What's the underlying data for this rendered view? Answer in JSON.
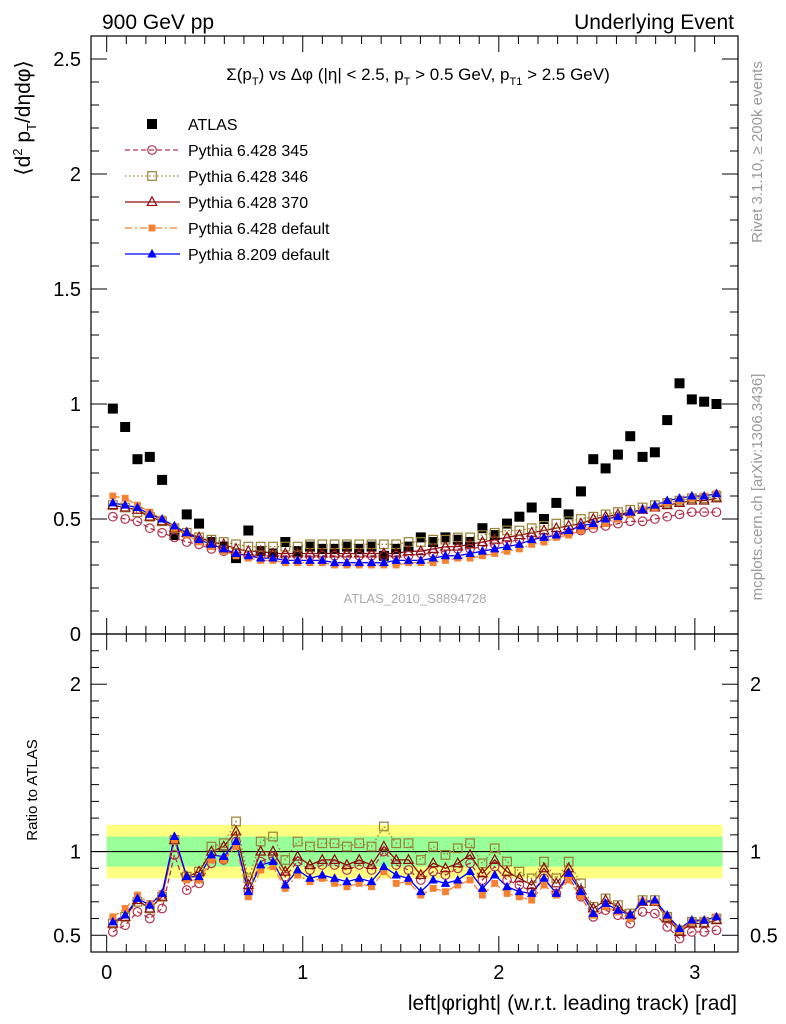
{
  "header": {
    "left": "900 GeV pp",
    "right": "Underlying Event"
  },
  "side_labels": {
    "rivet": "Rivet 3.1.10, ≥ 200k events",
    "mcplots": "mcplots.cern.ch [arXiv:1306.3436]"
  },
  "colors": {
    "atlas": "#000000",
    "p345": "#b2334d",
    "p346": "#998033",
    "p370": "#8c0d0d",
    "p6def": "#f58232",
    "p8def": "#0000ff",
    "band_outer": "#ffff80",
    "band_inner": "#99ff99"
  },
  "chart_data": [
    {
      "type": "scatter",
      "title_main": "Σ(p_T) vs Δφ (|η| < 2.5, p_T > 0.5 GeV, p_T1 > 2.5 GeV)",
      "ylabel": "⟨d² p_T/dηdφ⟩",
      "watermark": "ATLAS_2010_S8894728",
      "ylim": [
        0,
        2.6
      ],
      "xlim": [
        -0.08,
        3.22
      ],
      "yticks": [
        {
          "v": 0,
          "label": "0"
        },
        {
          "v": 0.5,
          "label": "0.5"
        },
        {
          "v": 1,
          "label": "1"
        },
        {
          "v": 1.5,
          "label": "1.5"
        },
        {
          "v": 2,
          "label": "2"
        },
        {
          "v": 2.5,
          "label": "2.5"
        }
      ],
      "xticks": [
        0,
        1,
        2,
        3
      ],
      "x": [
        0.0314,
        0.0942,
        0.157,
        0.2199,
        0.2827,
        0.3456,
        0.4084,
        0.4712,
        0.5341,
        0.5969,
        0.6597,
        0.7226,
        0.7854,
        0.8482,
        0.9111,
        0.9739,
        1.0367,
        1.0996,
        1.1624,
        1.2252,
        1.2881,
        1.3509,
        1.4137,
        1.4765,
        1.5394,
        1.6022,
        1.665,
        1.7279,
        1.7907,
        1.8535,
        1.9164,
        1.9792,
        2.042,
        2.1049,
        2.1677,
        2.2305,
        2.2934,
        2.3562,
        2.419,
        2.4819,
        2.5447,
        2.6075,
        2.6704,
        2.7332,
        2.796,
        2.8589,
        2.9217,
        2.9845,
        3.0474,
        3.1102
      ],
      "series": [
        {
          "name": "ATLAS",
          "key": "atlas",
          "marker": "filled-square",
          "values": [
            0.98,
            0.9,
            0.76,
            0.77,
            0.67,
            0.43,
            0.52,
            0.48,
            0.4,
            0.38,
            0.33,
            0.45,
            0.36,
            0.35,
            0.4,
            0.36,
            0.38,
            0.37,
            0.37,
            0.38,
            0.37,
            0.38,
            0.34,
            0.37,
            0.38,
            0.42,
            0.4,
            0.42,
            0.41,
            0.4,
            0.46,
            0.43,
            0.48,
            0.51,
            0.55,
            0.5,
            0.57,
            0.52,
            0.62,
            0.76,
            0.72,
            0.78,
            0.86,
            0.77,
            0.79,
            0.93,
            1.09,
            1.02,
            1.01,
            1.0
          ]
        },
        {
          "name": "Pythia 6.428 345",
          "key": "p345",
          "marker": "open-circle",
          "line": "dashed",
          "values": [
            0.51,
            0.5,
            0.49,
            0.46,
            0.44,
            0.42,
            0.4,
            0.39,
            0.37,
            0.36,
            0.35,
            0.34,
            0.34,
            0.34,
            0.34,
            0.34,
            0.34,
            0.34,
            0.34,
            0.34,
            0.34,
            0.34,
            0.34,
            0.34,
            0.34,
            0.35,
            0.35,
            0.36,
            0.37,
            0.37,
            0.38,
            0.39,
            0.4,
            0.41,
            0.42,
            0.42,
            0.43,
            0.44,
            0.45,
            0.46,
            0.47,
            0.48,
            0.49,
            0.49,
            0.5,
            0.51,
            0.52,
            0.53,
            0.53,
            0.53
          ]
        },
        {
          "name": "Pythia 6.428 346",
          "key": "p346",
          "marker": "open-square",
          "line": "dotted",
          "values": [
            0.56,
            0.55,
            0.53,
            0.51,
            0.49,
            0.46,
            0.44,
            0.42,
            0.41,
            0.4,
            0.39,
            0.38,
            0.38,
            0.38,
            0.38,
            0.38,
            0.39,
            0.39,
            0.39,
            0.39,
            0.39,
            0.39,
            0.39,
            0.39,
            0.4,
            0.4,
            0.41,
            0.41,
            0.42,
            0.42,
            0.43,
            0.44,
            0.45,
            0.45,
            0.46,
            0.47,
            0.48,
            0.49,
            0.5,
            0.51,
            0.52,
            0.53,
            0.54,
            0.55,
            0.56,
            0.57,
            0.58,
            0.59,
            0.59,
            0.6
          ]
        },
        {
          "name": "Pythia 6.428 370",
          "key": "p370",
          "marker": "open-triangle",
          "line": "solid",
          "values": [
            0.56,
            0.55,
            0.54,
            0.51,
            0.49,
            0.46,
            0.44,
            0.42,
            0.4,
            0.39,
            0.37,
            0.36,
            0.36,
            0.35,
            0.35,
            0.35,
            0.35,
            0.35,
            0.35,
            0.35,
            0.35,
            0.35,
            0.35,
            0.35,
            0.36,
            0.36,
            0.37,
            0.38,
            0.38,
            0.39,
            0.4,
            0.41,
            0.42,
            0.43,
            0.44,
            0.45,
            0.46,
            0.47,
            0.48,
            0.5,
            0.51,
            0.52,
            0.53,
            0.54,
            0.55,
            0.56,
            0.57,
            0.58,
            0.58,
            0.59
          ]
        },
        {
          "name": "Pythia 6.428 default",
          "key": "p6def",
          "marker": "filled-square-small",
          "line": "dashdot",
          "values": [
            0.6,
            0.59,
            0.56,
            0.53,
            0.5,
            0.46,
            0.43,
            0.4,
            0.38,
            0.36,
            0.34,
            0.33,
            0.32,
            0.32,
            0.31,
            0.31,
            0.31,
            0.31,
            0.3,
            0.3,
            0.3,
            0.3,
            0.3,
            0.3,
            0.31,
            0.31,
            0.31,
            0.32,
            0.33,
            0.33,
            0.34,
            0.35,
            0.36,
            0.37,
            0.39,
            0.4,
            0.42,
            0.43,
            0.45,
            0.47,
            0.48,
            0.5,
            0.52,
            0.54,
            0.55,
            0.57,
            0.58,
            0.59,
            0.6,
            0.61
          ]
        },
        {
          "name": "Pythia 8.209 default",
          "key": "p8def",
          "marker": "filled-triangle",
          "line": "solid",
          "values": [
            0.57,
            0.56,
            0.55,
            0.52,
            0.5,
            0.47,
            0.44,
            0.41,
            0.39,
            0.37,
            0.35,
            0.34,
            0.33,
            0.33,
            0.32,
            0.32,
            0.32,
            0.32,
            0.31,
            0.31,
            0.31,
            0.31,
            0.31,
            0.32,
            0.32,
            0.32,
            0.33,
            0.34,
            0.34,
            0.35,
            0.36,
            0.37,
            0.38,
            0.39,
            0.41,
            0.42,
            0.43,
            0.45,
            0.47,
            0.48,
            0.5,
            0.51,
            0.53,
            0.54,
            0.56,
            0.58,
            0.59,
            0.6,
            0.6,
            0.61
          ]
        }
      ]
    },
    {
      "type": "scatter",
      "ylabel": "Ratio to ATLAS",
      "ylim": [
        0.4,
        2.3
      ],
      "xlim": [
        -0.08,
        3.22
      ],
      "yticks": [
        {
          "v": 0.5,
          "label": "0.5"
        },
        {
          "v": 1,
          "label": "1"
        },
        {
          "v": 2,
          "label": "2"
        }
      ],
      "xticks": [
        {
          "v": 0,
          "label": "0"
        },
        {
          "v": 1,
          "label": "1"
        },
        {
          "v": 2,
          "label": "2"
        },
        {
          "v": 3,
          "label": "3"
        }
      ],
      "xlabel": "left|φright| (w.r.t. leading track) [rad]",
      "reference_line": 1,
      "bands": {
        "inner": [
          0.91,
          1.09
        ],
        "outer": [
          0.84,
          1.16
        ]
      },
      "ratios": {
        "p345": [
          0.52,
          0.56,
          0.64,
          0.6,
          0.66,
          0.98,
          0.77,
          0.81,
          0.93,
          0.95,
          1.06,
          0.76,
          0.94,
          0.97,
          0.85,
          0.94,
          0.89,
          0.92,
          0.92,
          0.89,
          0.92,
          0.89,
          1.0,
          0.92,
          0.89,
          0.83,
          0.88,
          0.86,
          0.9,
          0.93,
          0.83,
          0.91,
          0.83,
          0.8,
          0.76,
          0.84,
          0.75,
          0.85,
          0.73,
          0.61,
          0.65,
          0.62,
          0.57,
          0.64,
          0.63,
          0.55,
          0.48,
          0.52,
          0.52,
          0.53
        ],
        "p346": [
          0.57,
          0.61,
          0.7,
          0.66,
          0.73,
          1.07,
          0.85,
          0.88,
          1.03,
          1.05,
          1.18,
          0.84,
          1.06,
          1.09,
          0.95,
          1.06,
          1.03,
          1.05,
          1.05,
          1.03,
          1.05,
          1.03,
          1.15,
          1.05,
          1.05,
          0.95,
          1.03,
          0.98,
          1.02,
          1.05,
          0.93,
          1.02,
          0.94,
          0.88,
          0.84,
          0.94,
          0.84,
          0.94,
          0.81,
          0.67,
          0.72,
          0.68,
          0.63,
          0.71,
          0.71,
          0.61,
          0.53,
          0.58,
          0.58,
          0.6
        ],
        "p370": [
          0.57,
          0.61,
          0.71,
          0.66,
          0.73,
          1.07,
          0.85,
          0.88,
          1.0,
          1.03,
          1.12,
          0.8,
          1.0,
          1.0,
          0.88,
          0.97,
          0.92,
          0.95,
          0.95,
          0.92,
          0.95,
          0.92,
          1.03,
          0.95,
          0.95,
          0.86,
          0.93,
          0.9,
          0.93,
          0.98,
          0.87,
          0.95,
          0.88,
          0.84,
          0.8,
          0.9,
          0.81,
          0.9,
          0.77,
          0.66,
          0.71,
          0.67,
          0.62,
          0.7,
          0.7,
          0.6,
          0.52,
          0.57,
          0.57,
          0.59
        ],
        "p6def": [
          0.61,
          0.66,
          0.74,
          0.69,
          0.75,
          1.07,
          0.83,
          0.83,
          0.95,
          0.95,
          1.03,
          0.73,
          0.89,
          0.91,
          0.78,
          0.86,
          0.82,
          0.84,
          0.81,
          0.79,
          0.81,
          0.79,
          0.88,
          0.81,
          0.82,
          0.74,
          0.78,
          0.76,
          0.8,
          0.83,
          0.74,
          0.81,
          0.75,
          0.73,
          0.71,
          0.8,
          0.74,
          0.83,
          0.73,
          0.62,
          0.67,
          0.64,
          0.6,
          0.7,
          0.7,
          0.61,
          0.53,
          0.58,
          0.59,
          0.61
        ],
        "p8def": [
          0.58,
          0.62,
          0.72,
          0.68,
          0.75,
          1.09,
          0.85,
          0.85,
          0.98,
          0.97,
          1.06,
          0.76,
          0.92,
          0.94,
          0.8,
          0.89,
          0.84,
          0.86,
          0.84,
          0.82,
          0.84,
          0.82,
          0.91,
          0.86,
          0.84,
          0.76,
          0.83,
          0.81,
          0.83,
          0.88,
          0.78,
          0.86,
          0.79,
          0.76,
          0.75,
          0.84,
          0.75,
          0.87,
          0.76,
          0.63,
          0.69,
          0.65,
          0.62,
          0.7,
          0.71,
          0.62,
          0.54,
          0.59,
          0.59,
          0.61
        ]
      }
    }
  ]
}
